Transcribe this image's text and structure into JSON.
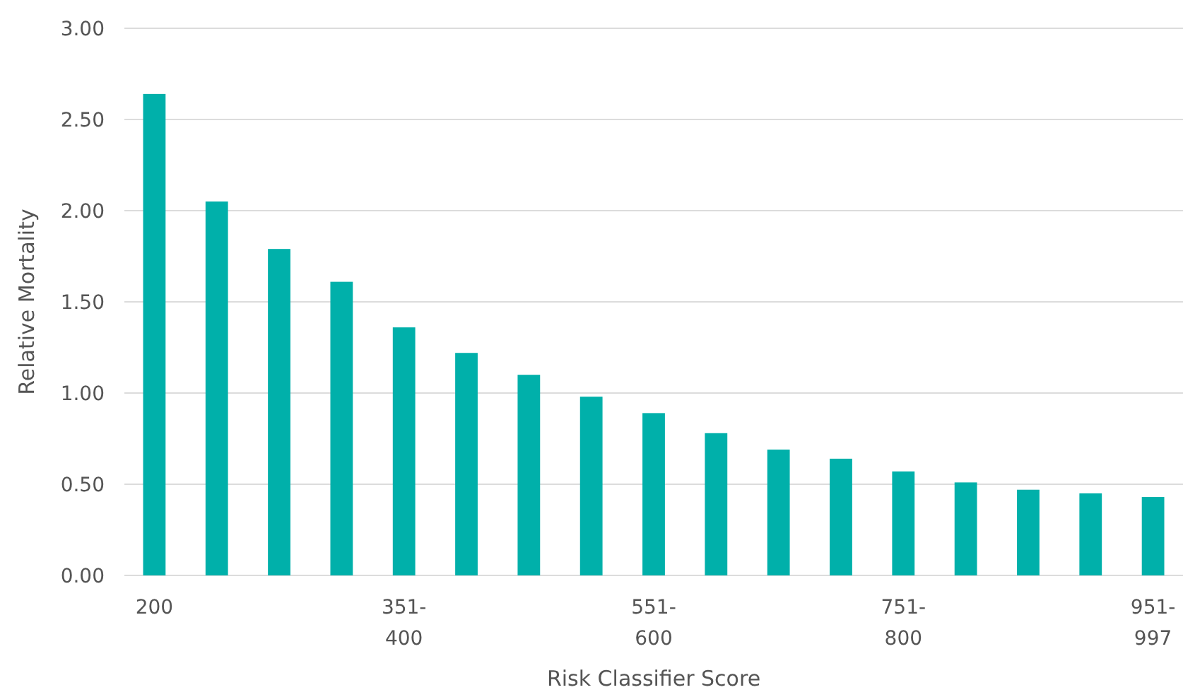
{
  "chart_data": {
    "type": "bar",
    "xlabel": "Risk Classifier Score",
    "ylabel": "Relative Mortality",
    "categories": [
      "200",
      null,
      null,
      null,
      "351-400",
      null,
      null,
      null,
      "551-600",
      null,
      null,
      null,
      "751-800",
      null,
      null,
      null,
      "951-997"
    ],
    "values": [
      2.64,
      2.05,
      1.79,
      1.61,
      1.36,
      1.22,
      1.1,
      0.98,
      0.89,
      0.78,
      0.69,
      0.64,
      0.57,
      0.51,
      0.47,
      0.45,
      0.43
    ],
    "color": "#00b0aa",
    "ylim": [
      0,
      3
    ],
    "yticks": [
      {
        "value": 0,
        "label": "0.00"
      },
      {
        "value": 0.5,
        "label": "0.50"
      },
      {
        "value": 1,
        "label": "1.00"
      },
      {
        "value": 1.5,
        "label": "1.50"
      },
      {
        "value": 2,
        "label": "2.00"
      },
      {
        "value": 2.5,
        "label": "2.50"
      },
      {
        "value": 3,
        "label": "3.00"
      }
    ],
    "grid": "y"
  }
}
